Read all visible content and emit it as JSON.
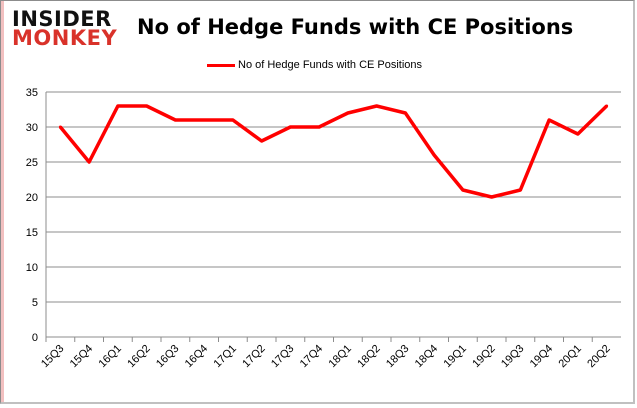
{
  "logo": {
    "line1": "INSIDER",
    "line2": "MONKEY"
  },
  "chart_data": {
    "type": "line",
    "title": "No of Hedge Funds with CE Positions",
    "categories": [
      "15Q3",
      "15Q4",
      "16Q1",
      "16Q2",
      "16Q3",
      "16Q4",
      "17Q1",
      "17Q2",
      "17Q3",
      "17Q4",
      "18Q1",
      "18Q2",
      "18Q3",
      "18Q4",
      "19Q1",
      "19Q2",
      "19Q3",
      "19Q4",
      "20Q1",
      "20Q2"
    ],
    "series": [
      {
        "name": "No of Hedge Funds with CE Positions",
        "color": "#ff0000",
        "values": [
          30,
          25,
          33,
          33,
          31,
          31,
          31,
          28,
          30,
          30,
          32,
          33,
          32,
          26,
          21,
          20,
          21,
          31,
          29,
          33
        ]
      }
    ],
    "ylim": [
      0,
      35
    ],
    "yticks": [
      0,
      5,
      10,
      15,
      20,
      25,
      30,
      35
    ],
    "grid": true,
    "legend": "top"
  }
}
